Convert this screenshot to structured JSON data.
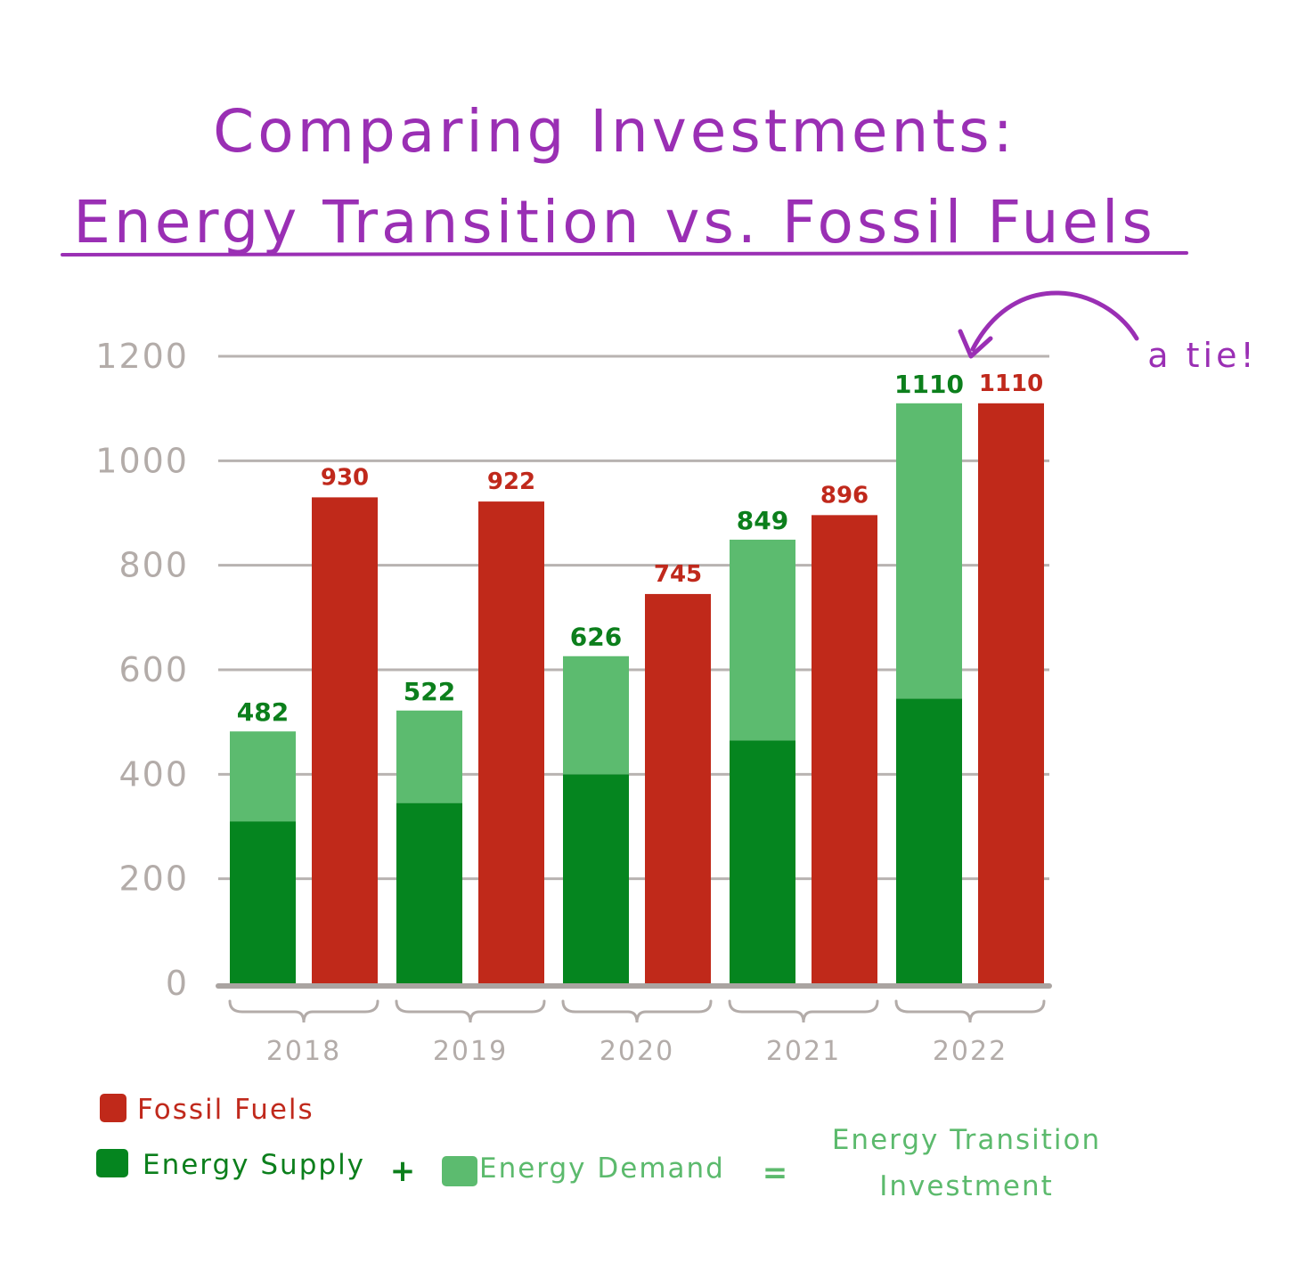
{
  "chart_data": {
    "type": "bar",
    "title": "Comparing Investments:",
    "subtitle": "Energy Transition vs. Fossil Fuels",
    "categories": [
      "2018",
      "2019",
      "2020",
      "2021",
      "2022"
    ],
    "series": [
      {
        "name": "Energy Supply",
        "values": [
          310,
          345,
          400,
          465,
          545
        ],
        "color": "#05851f"
      },
      {
        "name": "Energy Demand",
        "values": [
          172,
          177,
          226,
          384,
          565
        ],
        "color": "#5cbb6f"
      },
      {
        "name": "Fossil Fuels",
        "values": [
          930,
          922,
          745,
          896,
          1110
        ],
        "color": "#c0291a"
      }
    ],
    "stacked_groups": [
      [
        "Energy Supply",
        "Energy Demand"
      ],
      [
        "Fossil Fuels"
      ]
    ],
    "data_labels": {
      "transition": [
        "482",
        "522",
        "626",
        "849",
        "1110"
      ],
      "fossil": [
        "930",
        "922",
        "745",
        "896",
        "1110"
      ]
    },
    "yticks": [
      "0",
      "200",
      "400",
      "600",
      "800",
      "1000",
      "1200"
    ],
    "ylim": [
      0,
      1200
    ],
    "grid": true,
    "annotation": "a tie!",
    "legend": {
      "placement": "bottom-left",
      "fossil": "Fossil Fuels",
      "supply": "Energy Supply",
      "plus": "+",
      "demand": "Energy Demand",
      "equals": "=",
      "result_line1": "Energy Transition",
      "result_line2": "Investment"
    },
    "colors": {
      "title": "#9a2fb4",
      "axis": "#b3aca9",
      "grid": "#b8b3b1",
      "label_green": "#0c7f1c",
      "label_red": "#c0291c"
    }
  }
}
